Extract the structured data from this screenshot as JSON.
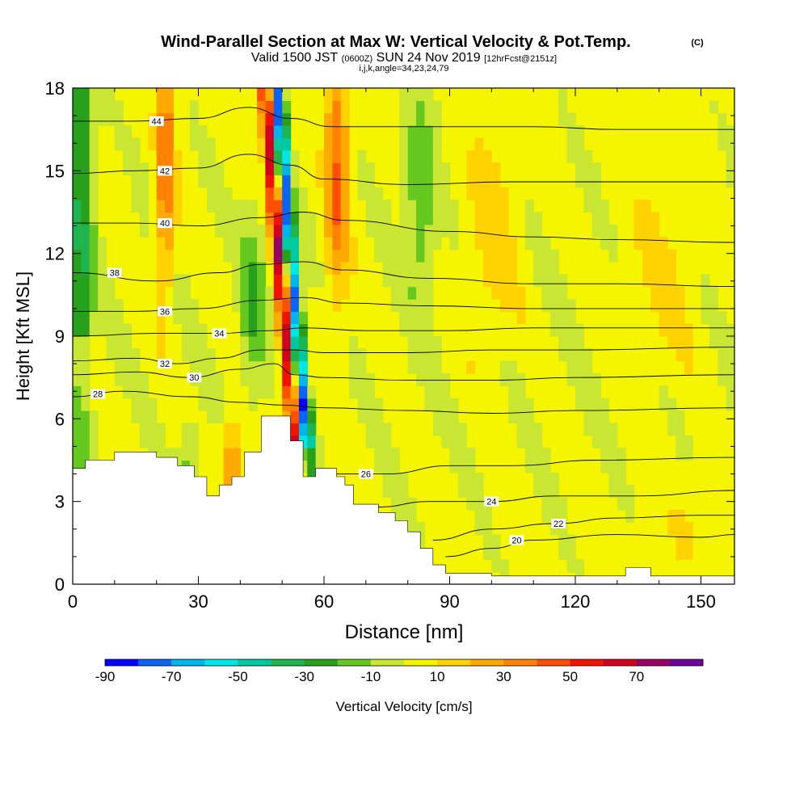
{
  "chart_data": {
    "type": "heatmap",
    "title": "Wind-Parallel Section at Max W: Vertical Velocity & Pot.Temp.",
    "copyright_mark": "(C)",
    "valid_main_a": "Valid 1500 JST",
    "valid_utc": "(0600Z)",
    "valid_main_b": "SUN 24 Nov 2019",
    "forecast": "[12hrFcst@2151z]",
    "indices": "i,j,k,angle=34,23,24,79",
    "xlabel": "Distance [nm]",
    "ylabel": "Height [Kft MSL]",
    "xlim": [
      0,
      158
    ],
    "ylim": [
      0,
      18
    ],
    "xticks": [
      "0",
      "30",
      "60",
      "90",
      "120",
      "150"
    ],
    "xtick_values": [
      0,
      30,
      60,
      90,
      120,
      150
    ],
    "yticks": [
      "0",
      "3",
      "6",
      "9",
      "12",
      "15",
      "18"
    ],
    "ytick_values": [
      0,
      3,
      6,
      9,
      12,
      15,
      18
    ],
    "colorbar": {
      "label": "Vertical Velocity [cm/s]",
      "bounds": [
        -90,
        -80,
        -70,
        -60,
        -50,
        -40,
        -30,
        -20,
        -10,
        0,
        10,
        20,
        30,
        40,
        50,
        60,
        70,
        80
      ],
      "colors": [
        "#0000ff",
        "#0a64f5",
        "#00b4f0",
        "#00e6e6",
        "#00c8a0",
        "#1eb450",
        "#28a01e",
        "#64c81e",
        "#c8e632",
        "#f5f500",
        "#ffd200",
        "#ffaa00",
        "#ff8200",
        "#ff5000",
        "#f01400",
        "#d2001e",
        "#960064",
        "#6e009b"
      ],
      "tick_labels": [
        "-90",
        "-70",
        "-50",
        "-30",
        "-10",
        "10",
        "30",
        "50",
        "70"
      ],
      "tick_values": [
        -90,
        -70,
        -50,
        -30,
        -10,
        10,
        30,
        50,
        70
      ]
    },
    "terrain": [
      [
        0,
        4.2
      ],
      [
        3,
        4.2
      ],
      [
        3,
        4.5
      ],
      [
        10,
        4.5
      ],
      [
        10,
        4.8
      ],
      [
        20,
        4.8
      ],
      [
        20,
        4.6
      ],
      [
        25,
        4.6
      ],
      [
        25,
        4.3
      ],
      [
        29,
        4.3
      ],
      [
        29,
        3.9
      ],
      [
        32,
        3.9
      ],
      [
        32,
        3.2
      ],
      [
        35,
        3.2
      ],
      [
        35,
        3.6
      ],
      [
        38,
        3.6
      ],
      [
        38,
        3.9
      ],
      [
        41,
        3.9
      ],
      [
        41,
        4.8
      ],
      [
        45,
        4.8
      ],
      [
        45,
        6.1
      ],
      [
        52,
        6.1
      ],
      [
        52,
        5.2
      ],
      [
        55,
        5.2
      ],
      [
        55,
        3.9
      ],
      [
        58,
        3.9
      ],
      [
        58,
        4.2
      ],
      [
        63,
        4.2
      ],
      [
        63,
        3.9
      ],
      [
        65,
        3.9
      ],
      [
        65,
        3.6
      ],
      [
        67,
        3.6
      ],
      [
        67,
        2.9
      ],
      [
        73,
        2.9
      ],
      [
        73,
        2.6
      ],
      [
        77,
        2.6
      ],
      [
        77,
        2.3
      ],
      [
        80,
        2.3
      ],
      [
        80,
        1.9
      ],
      [
        83,
        1.9
      ],
      [
        83,
        1.3
      ],
      [
        86,
        1.3
      ],
      [
        86,
        0.7
      ],
      [
        89,
        0.7
      ],
      [
        89,
        0.4
      ],
      [
        100,
        0.4
      ],
      [
        100,
        0.3
      ],
      [
        132,
        0.3
      ],
      [
        132,
        0.6
      ],
      [
        138,
        0.6
      ],
      [
        138,
        0.3
      ],
      [
        158,
        0.3
      ]
    ],
    "theta_contours": [
      {
        "level": 20,
        "label": "20",
        "points": [
          [
            89,
            1.0
          ],
          [
            100,
            1.3
          ],
          [
            110,
            1.6
          ],
          [
            130,
            1.8
          ],
          [
            150,
            1.7
          ],
          [
            158,
            1.8
          ]
        ],
        "label_at": [
          106,
          1.6
        ]
      },
      {
        "level": 22,
        "label": "22",
        "points": [
          [
            86,
            1.6
          ],
          [
            100,
            2.0
          ],
          [
            115,
            2.2
          ],
          [
            130,
            2.4
          ],
          [
            150,
            2.5
          ],
          [
            158,
            2.5
          ]
        ],
        "label_at": [
          116,
          2.2
        ]
      },
      {
        "level": 24,
        "label": "24",
        "points": [
          [
            73,
            2.8
          ],
          [
            85,
            3.0
          ],
          [
            100,
            3.0
          ],
          [
            115,
            3.2
          ],
          [
            135,
            3.2
          ],
          [
            158,
            3.4
          ]
        ],
        "label_at": [
          100,
          3.0
        ]
      },
      {
        "level": 26,
        "label": "26",
        "points": [
          [
            63,
            4.0
          ],
          [
            75,
            4.0
          ],
          [
            90,
            4.3
          ],
          [
            105,
            4.3
          ],
          [
            125,
            4.5
          ],
          [
            158,
            4.6
          ]
        ],
        "label_at": [
          70,
          4.0
        ]
      },
      {
        "level": 28,
        "label": "28",
        "points": [
          [
            0,
            6.8
          ],
          [
            12,
            7.0
          ],
          [
            28,
            6.8
          ],
          [
            40,
            6.6
          ],
          [
            50,
            6.5
          ],
          [
            60,
            6.4
          ],
          [
            80,
            6.3
          ],
          [
            100,
            6.2
          ],
          [
            120,
            6.3
          ],
          [
            158,
            6.4
          ]
        ],
        "label_at": [
          6,
          6.9
        ]
      },
      {
        "level": 30,
        "label": "30",
        "points": [
          [
            0,
            7.6
          ],
          [
            15,
            7.7
          ],
          [
            28,
            7.5
          ],
          [
            40,
            7.8
          ],
          [
            48,
            8.0
          ],
          [
            53,
            7.6
          ],
          [
            60,
            7.5
          ],
          [
            80,
            7.4
          ],
          [
            100,
            7.4
          ],
          [
            120,
            7.5
          ],
          [
            158,
            7.6
          ]
        ],
        "label_at": [
          29,
          7.5
        ]
      },
      {
        "level": 32,
        "label": "32",
        "points": [
          [
            0,
            8.1
          ],
          [
            15,
            8.2
          ],
          [
            25,
            8.0
          ],
          [
            35,
            8.2
          ],
          [
            45,
            8.5
          ],
          [
            53,
            8.5
          ],
          [
            60,
            8.4
          ],
          [
            80,
            8.4
          ],
          [
            100,
            8.5
          ],
          [
            120,
            8.5
          ],
          [
            158,
            8.6
          ]
        ],
        "label_at": [
          22,
          8.0
        ]
      },
      {
        "level": 34,
        "label": "34",
        "points": [
          [
            0,
            9.0
          ],
          [
            20,
            9.1
          ],
          [
            35,
            9.1
          ],
          [
            47,
            9.2
          ],
          [
            55,
            9.3
          ],
          [
            70,
            9.2
          ],
          [
            90,
            9.2
          ],
          [
            110,
            9.3
          ],
          [
            130,
            9.3
          ],
          [
            158,
            9.3
          ]
        ],
        "label_at": [
          35,
          9.1
        ]
      },
      {
        "level": 36,
        "label": "36",
        "points": [
          [
            0,
            9.9
          ],
          [
            15,
            9.9
          ],
          [
            30,
            10.0
          ],
          [
            45,
            10.3
          ],
          [
            55,
            10.4
          ],
          [
            65,
            10.2
          ],
          [
            85,
            10.1
          ],
          [
            110,
            10.0
          ],
          [
            130,
            10.0
          ],
          [
            158,
            10.0
          ]
        ],
        "label_at": [
          22,
          9.9
        ]
      },
      {
        "level": 38,
        "label": "38",
        "points": [
          [
            0,
            11.3
          ],
          [
            20,
            11.0
          ],
          [
            35,
            11.3
          ],
          [
            45,
            11.6
          ],
          [
            55,
            11.7
          ],
          [
            65,
            11.4
          ],
          [
            85,
            11.1
          ],
          [
            110,
            10.9
          ],
          [
            130,
            10.9
          ],
          [
            158,
            10.8
          ]
        ],
        "label_at": [
          10,
          11.3
        ]
      },
      {
        "level": 40,
        "label": "40",
        "points": [
          [
            0,
            13.1
          ],
          [
            15,
            13.1
          ],
          [
            30,
            13.0
          ],
          [
            45,
            13.3
          ],
          [
            55,
            13.5
          ],
          [
            65,
            13.2
          ],
          [
            90,
            12.8
          ],
          [
            110,
            12.6
          ],
          [
            130,
            12.5
          ],
          [
            158,
            12.4
          ]
        ],
        "label_at": [
          22,
          13.1
        ]
      },
      {
        "level": 42,
        "label": "42",
        "points": [
          [
            0,
            14.9
          ],
          [
            15,
            15.0
          ],
          [
            30,
            15.1
          ],
          [
            42,
            15.6
          ],
          [
            52,
            15.2
          ],
          [
            60,
            14.7
          ],
          [
            80,
            14.5
          ],
          [
            105,
            14.6
          ],
          [
            130,
            14.6
          ],
          [
            158,
            14.6
          ]
        ],
        "label_at": [
          22,
          15.0
        ]
      },
      {
        "level": 44,
        "label": "44",
        "points": [
          [
            0,
            16.8
          ],
          [
            15,
            16.8
          ],
          [
            30,
            16.9
          ],
          [
            42,
            17.3
          ],
          [
            52,
            16.9
          ],
          [
            62,
            16.6
          ],
          [
            80,
            16.6
          ],
          [
            110,
            16.6
          ],
          [
            130,
            16.5
          ],
          [
            158,
            16.5
          ]
        ],
        "label_at": [
          20,
          16.8
        ]
      }
    ]
  }
}
